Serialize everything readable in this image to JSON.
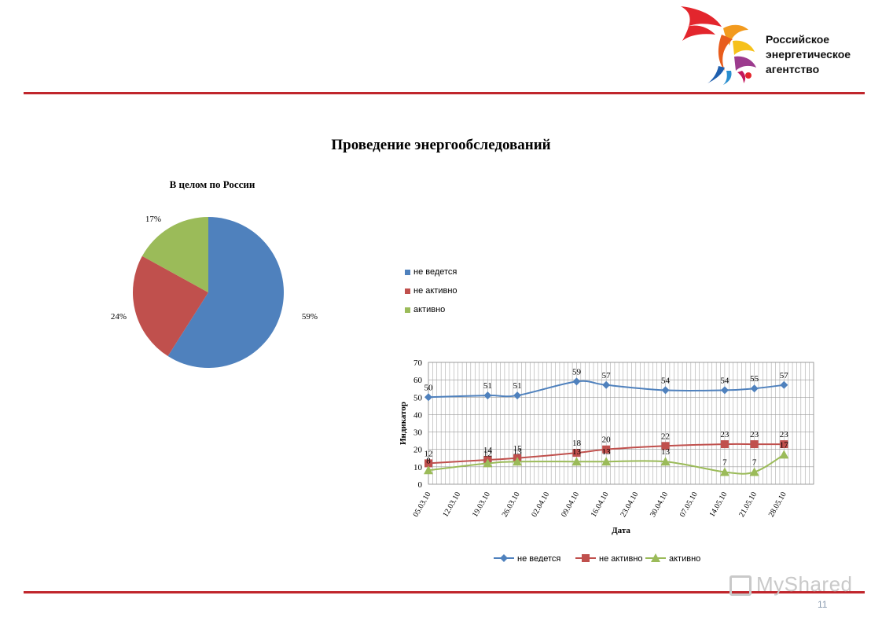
{
  "branding": {
    "org_lines": [
      "Российское",
      "энергетическое",
      "агентство"
    ]
  },
  "page_title": "Проведение энергообследований",
  "footer": {
    "page_number": "11",
    "watermark": "MyShared"
  },
  "colors": {
    "series1": "#4f81bd",
    "series2": "#c0504d",
    "series3": "#9bbb59",
    "rule": "#c0262c"
  },
  "chart_data": [
    {
      "type": "pie",
      "title": "В целом по России",
      "labels": [
        "не ведется",
        "не активно",
        "активно"
      ],
      "values": [
        59,
        24,
        17
      ],
      "value_labels": [
        "59%",
        "24%",
        "17%"
      ],
      "legend_position": "right"
    },
    {
      "type": "line",
      "xlabel": "Дата",
      "ylabel": "Индикатор",
      "ylim": [
        0,
        70
      ],
      "yticks": [
        0,
        10,
        20,
        30,
        40,
        50,
        60,
        70
      ],
      "grid": true,
      "legend_position": "bottom",
      "x_tick_labels": [
        "05.03.10",
        "12.03.10",
        "19.03.10",
        "26.03.10",
        "02.04.10",
        "09.04.10",
        "16.04.10",
        "23.04.10",
        "30.04.10",
        "07.05.10",
        "14.05.10",
        "21.05.10",
        "28.05.10"
      ],
      "x": [
        "05.03.10",
        "19.03.10",
        "26.03.10",
        "09.04.10",
        "16.04.10",
        "30.04.10",
        "14.05.10",
        "21.05.10",
        "28.05.10"
      ],
      "series": [
        {
          "name": "не ведется",
          "marker": "diamond",
          "values": [
            50,
            51,
            51,
            59,
            57,
            54,
            54,
            55,
            57
          ]
        },
        {
          "name": "не активно",
          "marker": "square",
          "values": [
            12,
            14,
            15,
            18,
            20,
            22,
            23,
            23,
            23
          ]
        },
        {
          "name": "активно",
          "marker": "triangle",
          "values": [
            8,
            12,
            13,
            13,
            13,
            13,
            7,
            7,
            17
          ]
        }
      ]
    }
  ]
}
